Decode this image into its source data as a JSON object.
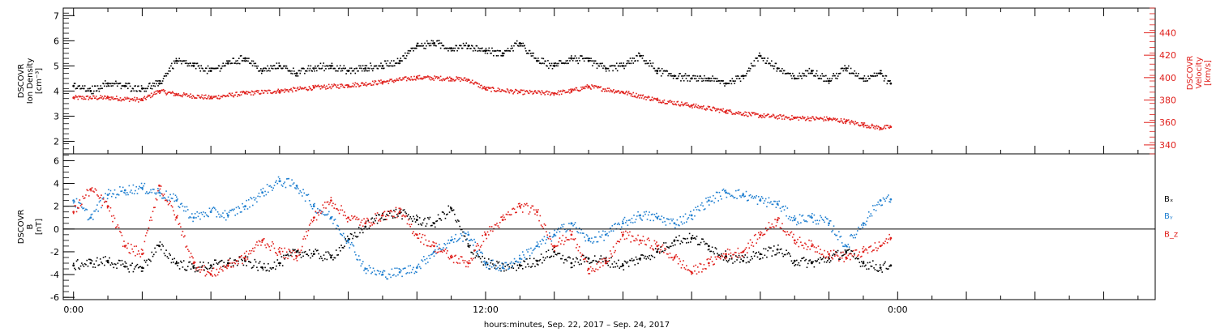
{
  "chart_data": [
    {
      "type": "scatter",
      "panel": "plasma",
      "ylabel_left": [
        "DSCOVR",
        "Ion Density",
        "[cm⁻³]"
      ],
      "ylabel_right": [
        "DSCOVR",
        "Velocity",
        "[km/s]"
      ],
      "xlim": [
        -0.3,
        31.5
      ],
      "ylim_left": [
        1.5,
        7.3
      ],
      "yticks_left": [
        2,
        3,
        4,
        5,
        6,
        7
      ],
      "ylim_right": [
        332,
        462
      ],
      "yticks_right": [
        340,
        360,
        380,
        400,
        420,
        440
      ],
      "colors": {
        "density": "#000000",
        "velocity": "#e0201c"
      },
      "series": [
        {
          "name": "Ion Density",
          "axis": "left",
          "color": "#000000",
          "x": [
            0,
            0.5,
            1,
            1.5,
            2,
            2.5,
            3,
            3.5,
            4,
            4.5,
            5,
            5.5,
            6,
            6.5,
            7,
            7.5,
            8,
            8.5,
            9,
            9.5,
            10,
            10.5,
            11,
            11.5,
            12,
            12.5,
            13,
            13.5,
            14,
            14.5,
            15,
            15.5,
            16,
            16.5,
            17,
            17.5,
            18,
            18.5,
            19,
            19.5,
            20,
            20.5,
            21,
            21.5,
            22,
            22.5,
            23,
            23.5,
            23.8
          ],
          "y": [
            4.2,
            4.0,
            4.3,
            4.2,
            4.1,
            4.3,
            5.2,
            5.0,
            4.8,
            5.1,
            5.3,
            4.8,
            5.0,
            4.7,
            4.9,
            5.0,
            4.8,
            4.9,
            5.0,
            5.2,
            5.8,
            5.9,
            5.7,
            5.8,
            5.6,
            5.5,
            5.9,
            5.2,
            5.0,
            5.3,
            5.2,
            4.9,
            5.0,
            5.4,
            4.8,
            4.6,
            4.5,
            4.5,
            4.3,
            4.6,
            5.4,
            4.9,
            4.5,
            4.8,
            4.4,
            4.9,
            4.5,
            4.7,
            4.3
          ]
        },
        {
          "name": "Velocity",
          "axis": "right",
          "color": "#e0201c",
          "x": [
            0,
            1,
            2,
            2.5,
            3,
            4,
            5,
            6,
            7,
            8,
            9,
            10,
            11,
            11.5,
            12,
            13,
            14,
            14.5,
            15,
            16,
            17,
            18,
            19,
            20,
            21,
            22,
            22.5,
            23,
            23.5,
            23.8
          ],
          "y": [
            382,
            382,
            380,
            388,
            385,
            382,
            386,
            388,
            391,
            393,
            396,
            400,
            399,
            398,
            390,
            387,
            386,
            388,
            392,
            387,
            380,
            375,
            370,
            366,
            364,
            363,
            361,
            358,
            355,
            356
          ]
        }
      ]
    },
    {
      "type": "scatter",
      "panel": "magnetic-field",
      "ylabel_left": [
        "DSCOVR",
        "B",
        "[nT]"
      ],
      "xlim": [
        -0.3,
        31.5
      ],
      "ylim": [
        -6.2,
        6.6
      ],
      "yticks": [
        -6,
        -4,
        -2,
        0,
        2,
        4,
        6
      ],
      "zero_line": true,
      "x_title": "hours:minutes, Sep. 22, 2017 – Sep. 24, 2017",
      "x_major_ticks": [
        0,
        12,
        24
      ],
      "x_tick_labels": [
        "0:00",
        "12:00",
        "0:00"
      ],
      "legend": {
        "placement": "right",
        "labels": [
          "Bₓ",
          "Bᵧ",
          "B_z"
        ]
      },
      "series": [
        {
          "name": "Bx",
          "legend": "Bₓ",
          "color": "#000000",
          "x": [
            0,
            0.5,
            1,
            1.5,
            2,
            2.5,
            3,
            3.5,
            4,
            4.5,
            5,
            5.5,
            6,
            6.5,
            7,
            7.5,
            8,
            8.5,
            9,
            9.5,
            10,
            10.5,
            11,
            11.5,
            12,
            12.5,
            13,
            13.5,
            14,
            14.5,
            15,
            15.5,
            16,
            16.5,
            17,
            17.5,
            18,
            18.5,
            19,
            19.5,
            20,
            20.5,
            21,
            21.5,
            22,
            22.5,
            23,
            23.5,
            23.8
          ],
          "y": [
            -3.2,
            -3.0,
            -2.8,
            -3.3,
            -3.4,
            -1.5,
            -3.0,
            -3.4,
            -3.2,
            -3.0,
            -2.8,
            -3.4,
            -3.0,
            -2.0,
            -2.2,
            -2.5,
            -1.0,
            0.2,
            1.2,
            1.4,
            0.8,
            0.5,
            1.8,
            -1.5,
            -3.0,
            -3.4,
            -3.2,
            -2.8,
            -2.0,
            -3.0,
            -2.6,
            -2.8,
            -3.2,
            -2.6,
            -2.0,
            -1.0,
            -0.8,
            -1.5,
            -2.4,
            -2.8,
            -2.2,
            -1.8,
            -2.8,
            -3.0,
            -2.6,
            -2.0,
            -3.0,
            -3.4,
            -3.2
          ]
        },
        {
          "name": "By",
          "legend": "Bᵧ",
          "color": "#1f7fd0",
          "x": [
            0,
            0.5,
            1,
            1.5,
            2,
            2.5,
            3,
            3.5,
            4,
            4.5,
            5,
            5.5,
            6,
            6.5,
            7,
            7.5,
            8,
            8.5,
            9,
            9.5,
            10,
            10.5,
            11,
            11.5,
            12,
            12.5,
            13,
            13.5,
            14,
            14.5,
            15,
            15.5,
            16,
            16.5,
            17,
            17.5,
            18,
            18.5,
            19,
            19.5,
            20,
            20.5,
            21,
            21.5,
            22,
            22.5,
            23,
            23.5,
            23.8
          ],
          "y": [
            2.5,
            1.0,
            3.0,
            3.4,
            3.6,
            3.2,
            2.5,
            1.0,
            1.5,
            1.2,
            2.0,
            3.2,
            4.2,
            3.8,
            2.0,
            1.0,
            -1.0,
            -3.5,
            -4.0,
            -3.8,
            -3.4,
            -2.0,
            -1.0,
            -0.5,
            -3.0,
            -3.4,
            -2.6,
            -1.5,
            -0.5,
            0.5,
            -1.0,
            -0.5,
            0.5,
            1.2,
            1.0,
            0.5,
            1.2,
            2.5,
            3.2,
            3.0,
            2.5,
            2.2,
            0.8,
            1.0,
            0.5,
            -1.5,
            0.5,
            2.5,
            2.6
          ]
        },
        {
          "name": "Bz",
          "legend": "B_z",
          "color": "#e0201c",
          "x": [
            0,
            0.5,
            1,
            1.5,
            2,
            2.5,
            3,
            3.5,
            4,
            4.5,
            5,
            5.5,
            6,
            6.5,
            7,
            7.5,
            8,
            8.5,
            9,
            9.5,
            10,
            10.5,
            11,
            11.5,
            12,
            12.5,
            13,
            13.5,
            14,
            14.5,
            15,
            15.5,
            16,
            16.5,
            17,
            17.5,
            18,
            18.5,
            19,
            19.5,
            20,
            20.5,
            21,
            21.5,
            22,
            22.5,
            23,
            23.5,
            23.8
          ],
          "y": [
            1.5,
            3.5,
            2.0,
            -1.5,
            -2.2,
            3.8,
            1.0,
            -3.0,
            -4.0,
            -3.2,
            -2.5,
            -1.0,
            -2.0,
            -2.4,
            1.0,
            2.5,
            1.0,
            0.5,
            1.2,
            1.5,
            -0.5,
            -1.5,
            -2.5,
            -3.0,
            -0.5,
            0.8,
            2.0,
            1.5,
            -1.5,
            -0.5,
            -3.5,
            -3.0,
            -0.5,
            -1.0,
            -1.5,
            -2.5,
            -3.8,
            -3.0,
            -2.2,
            -2.0,
            -0.5,
            0.8,
            -1.0,
            -1.5,
            -2.2,
            -2.5,
            -2.0,
            -1.5,
            -0.8
          ]
        }
      ]
    }
  ]
}
